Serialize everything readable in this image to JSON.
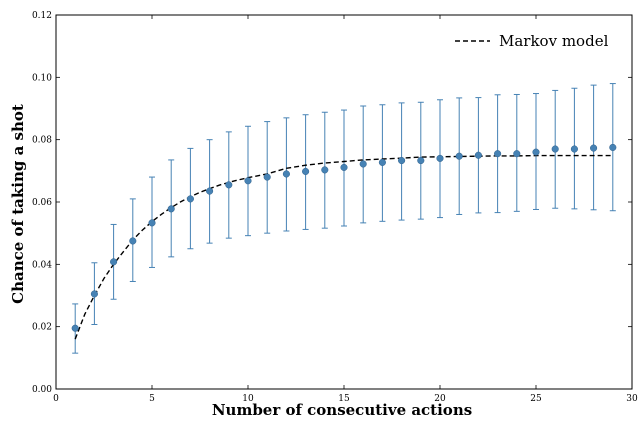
{
  "chart_data": {
    "type": "scatter",
    "title": "",
    "xlabel": "Number of consecutive actions",
    "ylabel": "Chance of taking a shot",
    "xlim": [
      0,
      30
    ],
    "ylim": [
      0,
      0.12
    ],
    "x_ticks": [
      0,
      5,
      10,
      15,
      20,
      25,
      30
    ],
    "y_ticks": [
      0.0,
      0.02,
      0.04,
      0.06,
      0.08,
      0.1,
      0.12
    ],
    "x_tick_labels": [
      "0",
      "5",
      "10",
      "15",
      "20",
      "25",
      "30"
    ],
    "y_tick_labels": [
      "0.00",
      "0.02",
      "0.04",
      "0.06",
      "0.08",
      "0.10",
      "0.12"
    ],
    "grid": false,
    "legend_position": "top-right",
    "legend": [
      {
        "label": "Markov model",
        "style": "dashed line",
        "color": "#000000"
      }
    ],
    "series": [
      {
        "type": "scatter-errorbar",
        "color": "#4682b4",
        "x": [
          1,
          2,
          3,
          4,
          5,
          6,
          7,
          8,
          9,
          10,
          11,
          12,
          13,
          14,
          15,
          16,
          17,
          18,
          19,
          20,
          21,
          22,
          23,
          24,
          25,
          26,
          27,
          28,
          29
        ],
        "y": [
          0.0195,
          0.0305,
          0.0408,
          0.0475,
          0.0533,
          0.0578,
          0.061,
          0.0635,
          0.0655,
          0.0668,
          0.068,
          0.069,
          0.0698,
          0.0703,
          0.0711,
          0.0722,
          0.0727,
          0.0733,
          0.0733,
          0.074,
          0.0747,
          0.075,
          0.0755,
          0.0755,
          0.076,
          0.077,
          0.077,
          0.0773,
          0.0775
        ],
        "y_low": [
          0.0115,
          0.0207,
          0.0288,
          0.0345,
          0.039,
          0.0424,
          0.045,
          0.0468,
          0.0484,
          0.0492,
          0.05,
          0.0507,
          0.0512,
          0.0516,
          0.0523,
          0.0533,
          0.0538,
          0.0542,
          0.0545,
          0.055,
          0.056,
          0.0565,
          0.0566,
          0.057,
          0.0576,
          0.058,
          0.0578,
          0.0575,
          0.0572
        ],
        "y_high": [
          0.0273,
          0.0405,
          0.0528,
          0.061,
          0.068,
          0.0735,
          0.0772,
          0.08,
          0.0825,
          0.0843,
          0.0858,
          0.087,
          0.088,
          0.0888,
          0.0895,
          0.0908,
          0.0912,
          0.0918,
          0.092,
          0.0928,
          0.0934,
          0.0935,
          0.0944,
          0.0945,
          0.0948,
          0.0958,
          0.0965,
          0.0975,
          0.098
        ]
      },
      {
        "name": "Markov model",
        "type": "line",
        "style": "dashed",
        "color": "#000000",
        "x": [
          1,
          1.5,
          2,
          2.5,
          3,
          3.5,
          4,
          4.5,
          5,
          5.5,
          6,
          6.5,
          7,
          7.5,
          8,
          8.5,
          9,
          9.5,
          10,
          11,
          12,
          13,
          14,
          15,
          16,
          17,
          18,
          19,
          20,
          21,
          22,
          23,
          24,
          25,
          26,
          27,
          28,
          29
        ],
        "y": [
          0.016,
          0.024,
          0.03,
          0.0355,
          0.04,
          0.044,
          0.0478,
          0.051,
          0.0537,
          0.0561,
          0.0582,
          0.0601,
          0.0617,
          0.0631,
          0.0643,
          0.0654,
          0.0663,
          0.0671,
          0.0678,
          0.069,
          0.0708,
          0.0718,
          0.0725,
          0.073,
          0.0735,
          0.0738,
          0.0741,
          0.0744,
          0.0745,
          0.0746,
          0.0747,
          0.0748,
          0.0748,
          0.0749,
          0.0749,
          0.0749,
          0.0749,
          0.0749
        ]
      }
    ]
  }
}
